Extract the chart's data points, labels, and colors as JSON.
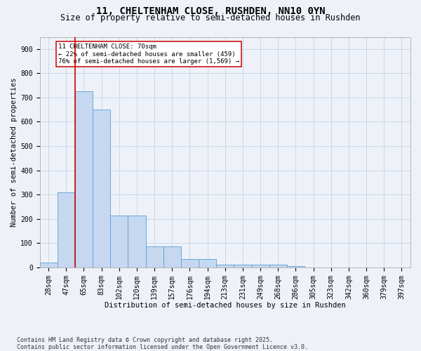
{
  "title1": "11, CHELTENHAM CLOSE, RUSHDEN, NN10 0YN",
  "title2": "Size of property relative to semi-detached houses in Rushden",
  "xlabel": "Distribution of semi-detached houses by size in Rushden",
  "ylabel": "Number of semi-detached properties",
  "categories": [
    "28sqm",
    "47sqm",
    "65sqm",
    "83sqm",
    "102sqm",
    "120sqm",
    "139sqm",
    "157sqm",
    "176sqm",
    "194sqm",
    "213sqm",
    "231sqm",
    "249sqm",
    "268sqm",
    "286sqm",
    "305sqm",
    "323sqm",
    "342sqm",
    "360sqm",
    "379sqm",
    "397sqm"
  ],
  "values": [
    20,
    310,
    725,
    650,
    215,
    215,
    85,
    85,
    35,
    35,
    12,
    12,
    10,
    10,
    6,
    0,
    0,
    0,
    0,
    0,
    0
  ],
  "bar_color": "#c5d8f0",
  "bar_edge_color": "#5a9fd4",
  "grid_color": "#c8d8e8",
  "background_color": "#eef2f8",
  "vline_x": 1.5,
  "vline_color": "#cc0000",
  "annotation_text": "11 CHELTENHAM CLOSE: 70sqm\n← 22% of semi-detached houses are smaller (459)\n76% of semi-detached houses are larger (1,569) →",
  "annotation_box_color": "#ffffff",
  "annotation_box_edge": "#cc0000",
  "ylim": [
    0,
    950
  ],
  "yticks": [
    0,
    100,
    200,
    300,
    400,
    500,
    600,
    700,
    800,
    900
  ],
  "footer": "Contains HM Land Registry data © Crown copyright and database right 2025.\nContains public sector information licensed under the Open Government Licence v3.0.",
  "title1_fontsize": 10,
  "title2_fontsize": 8.5,
  "axis_label_fontsize": 7.5,
  "tick_fontsize": 7,
  "footer_fontsize": 6,
  "annotation_fontsize": 6.5
}
